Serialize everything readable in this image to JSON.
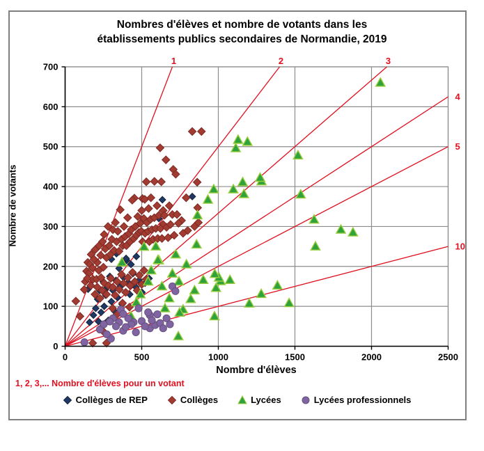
{
  "title": {
    "line1": "Nombres d'élèves et nombre de votants dans les",
    "line2": "établissements publics secondaires de Normandie, 2019"
  },
  "annotation": {
    "text": "1, 2, 3,... Nombre d'élèves pour un votant",
    "color": "#e01020"
  },
  "chart_data": {
    "type": "scatter",
    "title": "Nombres d'élèves et nombre de votants dans les établissements publics secondaires de Normandie, 2019",
    "xlabel": "Nombre d'élèves",
    "ylabel": "Nombre de votants",
    "xlim": [
      0,
      2500
    ],
    "ylim": [
      0,
      700
    ],
    "xticks": [
      0,
      500,
      1000,
      1500,
      2000,
      2500
    ],
    "yticks": [
      0,
      100,
      200,
      300,
      400,
      500,
      600,
      700
    ],
    "grid": true,
    "legend_position": "bottom",
    "gridline_color": "#8c8c8c",
    "ratio_lines": {
      "values": [
        1,
        2,
        3,
        4,
        5,
        10
      ],
      "color": "#e01020",
      "label_note": "élèves pour un votant"
    },
    "series": [
      {
        "name": "Collèges de REP",
        "marker": "diamond",
        "color": "#1F3864",
        "border": "#12233d",
        "points": [
          [
            150,
            143
          ],
          [
            160,
            60
          ],
          [
            185,
            78
          ],
          [
            200,
            95
          ],
          [
            212,
            118
          ],
          [
            225,
            140
          ],
          [
            235,
            85
          ],
          [
            248,
            162
          ],
          [
            255,
            100
          ],
          [
            265,
            128
          ],
          [
            275,
            148
          ],
          [
            282,
            65
          ],
          [
            292,
            175
          ],
          [
            302,
            112
          ],
          [
            312,
            140
          ],
          [
            322,
            88
          ],
          [
            332,
            165
          ],
          [
            342,
            122
          ],
          [
            352,
            195
          ],
          [
            362,
            150
          ],
          [
            372,
            105
          ],
          [
            382,
            172
          ],
          [
            392,
            135
          ],
          [
            402,
            215
          ],
          [
            412,
            160
          ],
          [
            422,
            130
          ],
          [
            442,
            182
          ],
          [
            462,
            148
          ],
          [
            482,
            165
          ],
          [
            502,
            135
          ],
          [
            522,
            158
          ],
          [
            548,
            170
          ],
          [
            612,
            320
          ],
          [
            635,
            367
          ],
          [
            830,
            375
          ],
          [
            398,
            220
          ],
          [
            302,
            218
          ],
          [
            335,
            232
          ],
          [
            430,
            205
          ],
          [
            465,
            225
          ],
          [
            218,
            62
          ],
          [
            238,
            48
          ]
        ]
      },
      {
        "name": "Collèges",
        "marker": "diamond",
        "color": "#A23B32",
        "border": "#7d2a23",
        "points": [
          [
            830,
            538
          ],
          [
            890,
            538
          ],
          [
            620,
            497
          ],
          [
            658,
            467
          ],
          [
            706,
            443
          ],
          [
            722,
            431
          ],
          [
            530,
            412
          ],
          [
            583,
            413
          ],
          [
            628,
            412
          ],
          [
            862,
            411
          ],
          [
            790,
            372
          ],
          [
            865,
            347
          ],
          [
            452,
            371
          ],
          [
            438,
            366
          ],
          [
            505,
            370
          ],
          [
            520,
            368
          ],
          [
            560,
            372
          ],
          [
            500,
            340
          ],
          [
            545,
            345
          ],
          [
            600,
            352
          ],
          [
            640,
            340
          ],
          [
            680,
            352
          ],
          [
            700,
            330
          ],
          [
            640,
            305
          ],
          [
            730,
            330
          ],
          [
            760,
            315
          ],
          [
            800,
            290
          ],
          [
            845,
            300
          ],
          [
            870,
            310
          ],
          [
            770,
            283
          ],
          [
            196,
            242
          ],
          [
            210,
            210
          ],
          [
            222,
            252
          ],
          [
            232,
            228
          ],
          [
            244,
            262
          ],
          [
            255,
            280
          ],
          [
            262,
            244
          ],
          [
            270,
            222
          ],
          [
            280,
            300
          ],
          [
            288,
            252
          ],
          [
            296,
            230
          ],
          [
            305,
            268
          ],
          [
            312,
            292
          ],
          [
            320,
            240
          ],
          [
            328,
            310
          ],
          [
            336,
            262
          ],
          [
            344,
            288
          ],
          [
            352,
            238
          ],
          [
            360,
            342
          ],
          [
            368,
            268
          ],
          [
            376,
            252
          ],
          [
            384,
            300
          ],
          [
            392,
            275
          ],
          [
            400,
            252
          ],
          [
            408,
            322
          ],
          [
            416,
            282
          ],
          [
            424,
            262
          ],
          [
            432,
            292
          ],
          [
            448,
            270
          ],
          [
            458,
            300
          ],
          [
            466,
            278
          ],
          [
            474,
            325
          ],
          [
            482,
            285
          ],
          [
            490,
            308
          ],
          [
            498,
            288
          ],
          [
            506,
            262
          ],
          [
            514,
            320
          ],
          [
            522,
            283
          ],
          [
            534,
            310
          ],
          [
            542,
            288
          ],
          [
            550,
            262
          ],
          [
            558,
            318
          ],
          [
            566,
            292
          ],
          [
            574,
            268
          ],
          [
            582,
            322
          ],
          [
            592,
            295
          ],
          [
            604,
            270
          ],
          [
            612,
            328
          ],
          [
            622,
            295
          ],
          [
            632,
            270
          ],
          [
            648,
            328
          ],
          [
            662,
            298
          ],
          [
            672,
            272
          ],
          [
            688,
            305
          ],
          [
            712,
            278
          ],
          [
            740,
            308
          ],
          [
            132,
            162
          ],
          [
            140,
            188
          ],
          [
            148,
            210
          ],
          [
            155,
            182
          ],
          [
            162,
            205
          ],
          [
            170,
            230
          ],
          [
            178,
            196
          ],
          [
            188,
            218
          ],
          [
            168,
            152
          ],
          [
            182,
            168
          ],
          [
            195,
            130
          ],
          [
            210,
            148
          ],
          [
            228,
            120
          ],
          [
            242,
            140
          ],
          [
            256,
            158
          ],
          [
            270,
            130
          ],
          [
            284,
            152
          ],
          [
            298,
            170
          ],
          [
            312,
            148
          ],
          [
            326,
            128
          ],
          [
            340,
            162
          ],
          [
            354,
            142
          ],
          [
            368,
            180
          ],
          [
            382,
            158
          ],
          [
            396,
            135
          ],
          [
            410,
            172
          ],
          [
            424,
            152
          ],
          [
            440,
            185
          ],
          [
            455,
            162
          ],
          [
            470,
            140
          ],
          [
            485,
            178
          ],
          [
            500,
            155
          ],
          [
            515,
            190
          ],
          [
            530,
            168
          ],
          [
            125,
            142
          ],
          [
            70,
            113
          ],
          [
            97,
            75
          ],
          [
            145,
            170
          ],
          [
            180,
            8
          ],
          [
            270,
            8
          ],
          [
            255,
            35
          ],
          [
            310,
            95
          ],
          [
            340,
            80
          ],
          [
            375,
            108
          ],
          [
            420,
            98
          ],
          [
            205,
            168
          ],
          [
            220,
            190
          ],
          [
            235,
            172
          ],
          [
            250,
            198
          ]
        ]
      },
      {
        "name": "Lycées",
        "marker": "triangle",
        "color": "#2FA23C",
        "border": "#9BCE3F",
        "points": [
          [
            2058,
            660
          ],
          [
            1879,
            285
          ],
          [
            1800,
            292
          ],
          [
            1625,
            317
          ],
          [
            1634,
            250
          ],
          [
            1538,
            380
          ],
          [
            1520,
            478
          ],
          [
            1462,
            108
          ],
          [
            1386,
            152
          ],
          [
            1282,
            413
          ],
          [
            1273,
            422
          ],
          [
            1280,
            131
          ],
          [
            1202,
            107
          ],
          [
            1190,
            512
          ],
          [
            1129,
            517
          ],
          [
            1114,
            496
          ],
          [
            1098,
            393
          ],
          [
            1076,
            166
          ],
          [
            1015,
            163
          ],
          [
            1004,
            172
          ],
          [
            977,
            181
          ],
          [
            985,
            146
          ],
          [
            975,
            75
          ],
          [
            970,
            393
          ],
          [
            932,
            367
          ],
          [
            902,
            166
          ],
          [
            864,
            328
          ],
          [
            858,
            255
          ],
          [
            845,
            140
          ],
          [
            820,
            118
          ],
          [
            792,
            205
          ],
          [
            770,
            92
          ],
          [
            747,
            84
          ],
          [
            743,
            162
          ],
          [
            739,
            25
          ],
          [
            722,
            230
          ],
          [
            700,
            182
          ],
          [
            680,
            120
          ],
          [
            652,
            95
          ],
          [
            632,
            150
          ],
          [
            612,
            215
          ],
          [
            592,
            250
          ],
          [
            562,
            190
          ],
          [
            542,
            162
          ],
          [
            515,
            249
          ],
          [
            492,
            130
          ],
          [
            465,
            110
          ],
          [
            430,
            75
          ],
          [
            606,
            216
          ],
          [
            371,
            210
          ],
          [
            1167,
            381
          ],
          [
            1159,
            411
          ]
        ]
      },
      {
        "name": "Lycées professionnels",
        "marker": "circle",
        "color": "#8064A2",
        "border": "#66517f",
        "points": [
          [
            126,
            10
          ],
          [
            227,
            42
          ],
          [
            299,
            19
          ],
          [
            364,
            92
          ],
          [
            379,
            81
          ],
          [
            379,
            39
          ],
          [
            447,
            60
          ],
          [
            500,
            63
          ],
          [
            553,
            45
          ],
          [
            553,
            78
          ],
          [
            588,
            53
          ],
          [
            620,
            58
          ],
          [
            640,
            45
          ],
          [
            662,
            70
          ],
          [
            684,
            55
          ],
          [
            700,
            150
          ],
          [
            720,
            138
          ],
          [
            480,
            95
          ],
          [
            462,
            35
          ],
          [
            432,
            55
          ],
          [
            412,
            70
          ],
          [
            396,
            48
          ],
          [
            352,
            60
          ],
          [
            332,
            50
          ],
          [
            312,
            70
          ],
          [
            292,
            62
          ],
          [
            272,
            30
          ],
          [
            252,
            55
          ],
          [
            522,
            50
          ],
          [
            542,
            85
          ],
          [
            566,
            65
          ],
          [
            602,
            80
          ]
        ]
      }
    ]
  }
}
